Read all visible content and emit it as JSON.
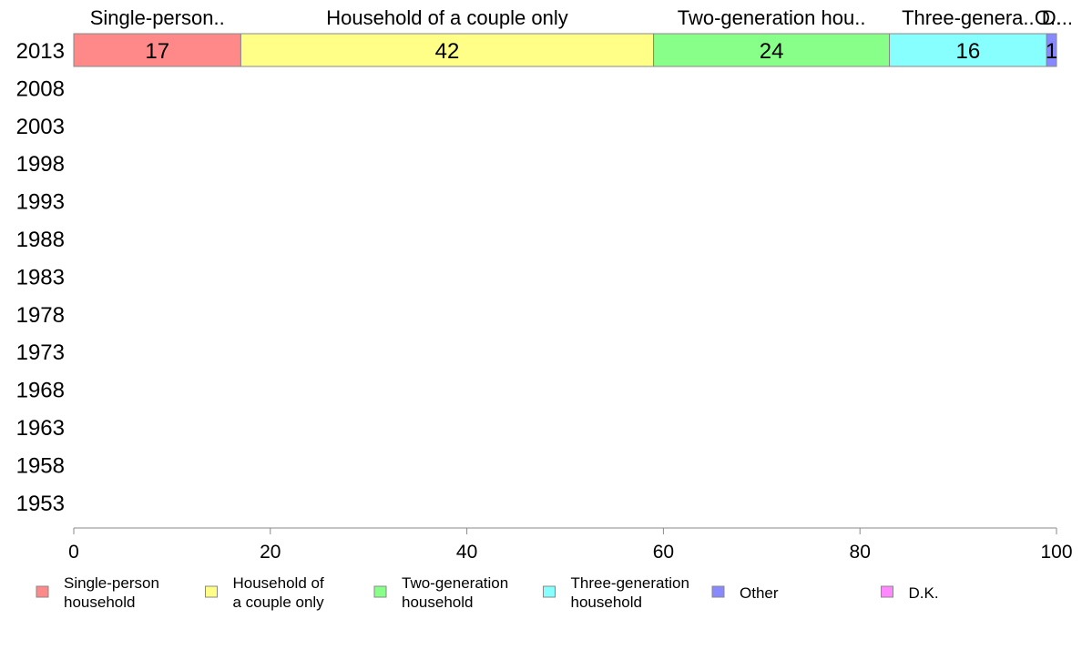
{
  "chart_data": {
    "type": "bar",
    "orientation": "horizontal",
    "stacked": true,
    "categories": [
      "2013",
      "2008",
      "2003",
      "1998",
      "1993",
      "1988",
      "1983",
      "1978",
      "1973",
      "1968",
      "1963",
      "1958",
      "1953"
    ],
    "series": [
      {
        "name": "Single-person household",
        "color": "#ff8888",
        "values": [
          17,
          null,
          null,
          null,
          null,
          null,
          null,
          null,
          null,
          null,
          null,
          null,
          null
        ]
      },
      {
        "name": "Household of a couple only",
        "color": "#ffff88",
        "values": [
          42,
          null,
          null,
          null,
          null,
          null,
          null,
          null,
          null,
          null,
          null,
          null,
          null
        ]
      },
      {
        "name": "Two-generation household",
        "color": "#88ff88",
        "values": [
          24,
          null,
          null,
          null,
          null,
          null,
          null,
          null,
          null,
          null,
          null,
          null,
          null
        ]
      },
      {
        "name": "Three-generation household",
        "color": "#88ffff",
        "values": [
          16,
          null,
          null,
          null,
          null,
          null,
          null,
          null,
          null,
          null,
          null,
          null,
          null
        ]
      },
      {
        "name": "Other",
        "color": "#8888ff",
        "values": [
          1,
          null,
          null,
          null,
          null,
          null,
          null,
          null,
          null,
          null,
          null,
          null,
          null
        ]
      },
      {
        "name": "D.K.",
        "color": "#ff88ff",
        "values": [
          0,
          null,
          null,
          null,
          null,
          null,
          null,
          null,
          null,
          null,
          null,
          null,
          null
        ]
      }
    ],
    "top_labels": [
      "Single-person..",
      "Household of a couple only",
      "Two-generation hou..",
      "Three-genera..",
      "O..",
      "D..."
    ],
    "data_labels": [
      "17",
      "42",
      "24",
      "16",
      "1"
    ],
    "legend": [
      {
        "line1": "Single-person",
        "line2": "household",
        "color": "#ff8888"
      },
      {
        "line1": "Household of",
        "line2": "a couple only",
        "color": "#ffff88"
      },
      {
        "line1": "Two-generation",
        "line2": "household",
        "color": "#88ff88"
      },
      {
        "line1": "Three-generation",
        "line2": "household",
        "color": "#88ffff"
      },
      {
        "line1": "Other",
        "line2": "",
        "color": "#8888ff"
      },
      {
        "line1": "D.K.",
        "line2": "",
        "color": "#ff88ff"
      }
    ],
    "xticks": [
      0,
      20,
      40,
      60,
      80,
      100
    ],
    "xlim": [
      0,
      100
    ],
    "grid": false,
    "legend_position": "bottom"
  }
}
